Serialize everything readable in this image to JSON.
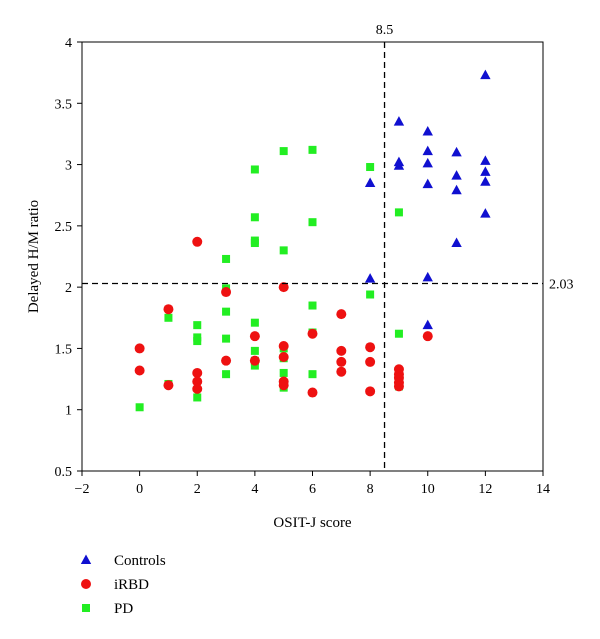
{
  "chart_data": {
    "type": "scatter",
    "title": "",
    "xlabel": "OSIT-J score",
    "ylabel": "Delayed H/M ratio",
    "xlim": [
      -2,
      14
    ],
    "ylim": [
      0.5,
      4
    ],
    "xticks": [
      "−2",
      "0",
      "2",
      "4",
      "6",
      "8",
      "10",
      "12",
      "14"
    ],
    "yticks": [
      "0.5",
      "1",
      "1.5",
      "2",
      "2.5",
      "3",
      "3.5",
      "4"
    ],
    "grid": false,
    "legend_position": "bottom-left",
    "reference_lines": {
      "vertical": {
        "value": 8.5,
        "label": "8.5"
      },
      "horizontal": {
        "value": 2.03,
        "label": "2.03"
      }
    },
    "series": [
      {
        "name": "Controls",
        "marker": "triangle",
        "color": "#1010d0",
        "points": [
          [
            8,
            2.85
          ],
          [
            8,
            2.07
          ],
          [
            9,
            3.35
          ],
          [
            9,
            3.02
          ],
          [
            9,
            2.99
          ],
          [
            10,
            3.27
          ],
          [
            10,
            3.11
          ],
          [
            10,
            3.01
          ],
          [
            10,
            2.84
          ],
          [
            10,
            2.08
          ],
          [
            10,
            1.69
          ],
          [
            11,
            3.1
          ],
          [
            11,
            2.91
          ],
          [
            11,
            2.79
          ],
          [
            11,
            2.36
          ],
          [
            12,
            3.73
          ],
          [
            12,
            3.03
          ],
          [
            12,
            2.94
          ],
          [
            12,
            2.86
          ],
          [
            12,
            2.6
          ]
        ]
      },
      {
        "name": "iRBD",
        "marker": "circle",
        "color": "#ee1111",
        "points": [
          [
            0,
            1.5
          ],
          [
            0,
            1.32
          ],
          [
            1,
            1.82
          ],
          [
            1,
            1.2
          ],
          [
            2,
            2.37
          ],
          [
            2,
            1.3
          ],
          [
            2,
            1.23
          ],
          [
            2,
            1.17
          ],
          [
            3,
            1.96
          ],
          [
            3,
            1.4
          ],
          [
            4,
            1.6
          ],
          [
            4,
            1.4
          ],
          [
            5,
            2.0
          ],
          [
            5,
            1.52
          ],
          [
            5,
            1.43
          ],
          [
            5,
            1.23
          ],
          [
            5,
            1.2
          ],
          [
            6,
            1.62
          ],
          [
            6,
            1.14
          ],
          [
            7,
            1.78
          ],
          [
            7,
            1.48
          ],
          [
            7,
            1.39
          ],
          [
            7,
            1.31
          ],
          [
            8,
            1.51
          ],
          [
            8,
            1.39
          ],
          [
            8,
            1.15
          ],
          [
            9,
            1.33
          ],
          [
            9,
            1.29
          ],
          [
            9,
            1.26
          ],
          [
            9,
            1.22
          ],
          [
            9,
            1.19
          ],
          [
            10,
            1.6
          ]
        ]
      },
      {
        "name": "PD",
        "marker": "square",
        "color": "#22ee22",
        "points": [
          [
            0,
            1.02
          ],
          [
            1,
            1.75
          ],
          [
            1,
            1.21
          ],
          [
            2,
            1.69
          ],
          [
            2,
            1.59
          ],
          [
            2,
            1.56
          ],
          [
            2,
            1.1
          ],
          [
            3,
            2.23
          ],
          [
            3,
            1.99
          ],
          [
            3,
            1.8
          ],
          [
            3,
            1.58
          ],
          [
            3,
            1.29
          ],
          [
            4,
            2.96
          ],
          [
            4,
            2.57
          ],
          [
            4,
            2.38
          ],
          [
            4,
            2.36
          ],
          [
            4,
            1.71
          ],
          [
            4,
            1.48
          ],
          [
            4,
            1.4
          ],
          [
            4,
            1.36
          ],
          [
            5,
            3.11
          ],
          [
            5,
            2.3
          ],
          [
            5,
            1.5
          ],
          [
            5,
            1.42
          ],
          [
            5,
            1.3
          ],
          [
            5,
            1.18
          ],
          [
            6,
            3.12
          ],
          [
            6,
            2.53
          ],
          [
            6,
            1.85
          ],
          [
            6,
            1.63
          ],
          [
            6,
            1.29
          ],
          [
            8,
            2.98
          ],
          [
            8,
            1.94
          ],
          [
            9,
            2.61
          ],
          [
            9,
            1.62
          ],
          [
            9,
            1.19
          ]
        ]
      }
    ]
  }
}
